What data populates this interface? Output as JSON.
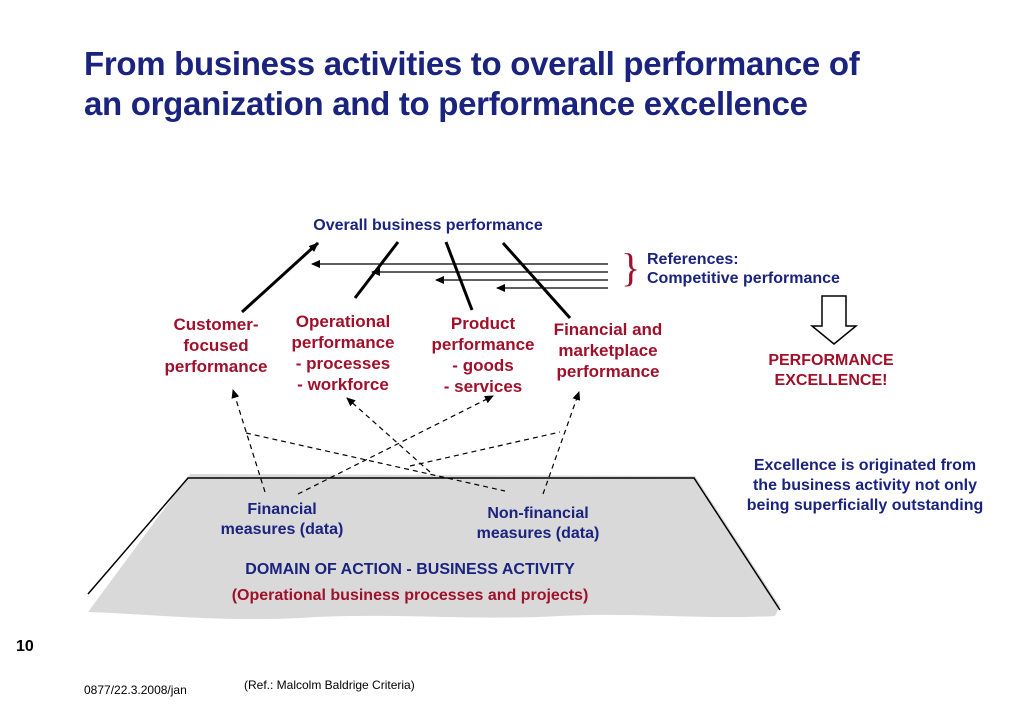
{
  "title": {
    "line1": "From business activities to overall performance of",
    "line2": "an organization and to performance excellence"
  },
  "overall": "Overall business performance",
  "references": {
    "line1": "References:",
    "line2": "Competitive performance",
    "brace": "}"
  },
  "categories": {
    "customer": [
      "Customer-",
      "focused",
      "performance"
    ],
    "operational": [
      "Operational",
      "performance",
      "- processes",
      "- workforce"
    ],
    "product": [
      "Product",
      "performance",
      "- goods",
      "- services"
    ],
    "financial": [
      "Financial and",
      "marketplace",
      "performance"
    ]
  },
  "excellence": {
    "line1": "PERFORMANCE",
    "line2": "EXCELLENCE!"
  },
  "note": [
    "Excellence is originated from",
    "the business activity not only",
    "being superficially outstanding"
  ],
  "measures": {
    "financial": [
      "Financial",
      "measures (data)"
    ],
    "nonfinancial": [
      "Non-financial",
      "measures (data)"
    ]
  },
  "domain": {
    "line1": "DOMAIN OF ACTION - BUSINESS ACTIVITY",
    "line2": "(Operational business processes and projects)"
  },
  "footer": {
    "page": "10",
    "code": "0877/22.3.2008/jan",
    "ref": "(Ref.: Malcolm Baldrige Criteria)"
  },
  "colors": {
    "navy": "#1a237e",
    "red": "#a0102a",
    "platform": "#d9d9d9"
  }
}
